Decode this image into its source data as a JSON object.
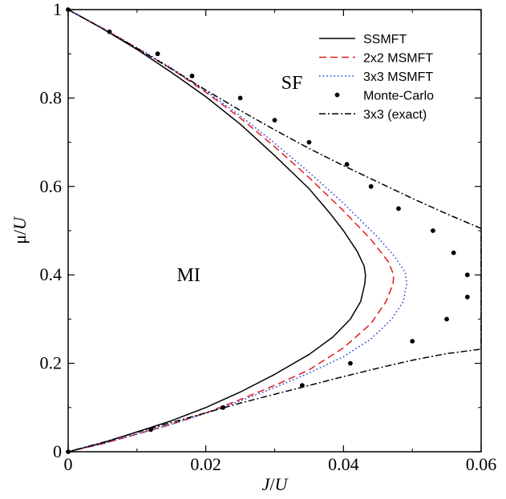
{
  "chart_data": {
    "type": "line",
    "xlabel": {
      "main": "J",
      "sep": "/",
      "sub": "U"
    },
    "ylabel": {
      "main": "μ",
      "sep": "/",
      "sub": "U"
    },
    "xlim": [
      0,
      0.06
    ],
    "ylim": [
      0,
      1
    ],
    "xticks": [
      0,
      0.02,
      0.04,
      0.06
    ],
    "yticks": [
      0,
      0.2,
      0.4,
      0.6,
      0.8,
      1
    ],
    "xtick_labels": [
      "0",
      "0.02",
      "0.04",
      "0.06"
    ],
    "ytick_labels": [
      "0",
      "0.2",
      "0.4",
      "0.6",
      "0.8",
      "1"
    ],
    "legend_position": "top-right",
    "annotations": [
      {
        "text": "SF",
        "x": 0.0325,
        "y": 0.835
      },
      {
        "text": "MI",
        "x": 0.0175,
        "y": 0.4
      }
    ],
    "series": [
      {
        "name": "SSMFT",
        "style": "solid",
        "color": "#000000",
        "points": [
          [
            0,
            1
          ],
          [
            0.005,
            0.957
          ],
          [
            0.01,
            0.91
          ],
          [
            0.015,
            0.858
          ],
          [
            0.02,
            0.803
          ],
          [
            0.025,
            0.741
          ],
          [
            0.03,
            0.67
          ],
          [
            0.035,
            0.595
          ],
          [
            0.038,
            0.54
          ],
          [
            0.04,
            0.5
          ],
          [
            0.042,
            0.453
          ],
          [
            0.043,
            0.42
          ],
          [
            0.0432,
            0.4
          ],
          [
            0.0431,
            0.38
          ],
          [
            0.0425,
            0.34
          ],
          [
            0.041,
            0.3
          ],
          [
            0.0385,
            0.26
          ],
          [
            0.035,
            0.22
          ],
          [
            0.03,
            0.175
          ],
          [
            0.025,
            0.135
          ],
          [
            0.02,
            0.1
          ],
          [
            0.015,
            0.07
          ],
          [
            0.01,
            0.045
          ],
          [
            0.005,
            0.02
          ],
          [
            0,
            0
          ]
        ]
      },
      {
        "name": "2x2 MSMFT",
        "style": "dashed",
        "color": "#e41a1c",
        "points": [
          [
            0,
            1
          ],
          [
            0.005,
            0.958
          ],
          [
            0.01,
            0.913
          ],
          [
            0.015,
            0.866
          ],
          [
            0.02,
            0.813
          ],
          [
            0.025,
            0.755
          ],
          [
            0.03,
            0.69
          ],
          [
            0.035,
            0.62
          ],
          [
            0.04,
            0.545
          ],
          [
            0.044,
            0.48
          ],
          [
            0.0465,
            0.43
          ],
          [
            0.0473,
            0.4
          ],
          [
            0.0472,
            0.38
          ],
          [
            0.0462,
            0.34
          ],
          [
            0.044,
            0.29
          ],
          [
            0.04,
            0.235
          ],
          [
            0.035,
            0.185
          ],
          [
            0.03,
            0.15
          ],
          [
            0.025,
            0.118
          ],
          [
            0.02,
            0.088
          ],
          [
            0.015,
            0.062
          ],
          [
            0.01,
            0.04
          ],
          [
            0.005,
            0.018
          ],
          [
            0,
            0
          ]
        ]
      },
      {
        "name": "3x3 MSMFT",
        "style": "dotted",
        "color": "#1f3fd6",
        "points": [
          [
            0,
            1
          ],
          [
            0.005,
            0.958
          ],
          [
            0.01,
            0.914
          ],
          [
            0.015,
            0.868
          ],
          [
            0.02,
            0.816
          ],
          [
            0.025,
            0.76
          ],
          [
            0.03,
            0.698
          ],
          [
            0.035,
            0.632
          ],
          [
            0.04,
            0.562
          ],
          [
            0.045,
            0.485
          ],
          [
            0.0475,
            0.44
          ],
          [
            0.049,
            0.405
          ],
          [
            0.0492,
            0.38
          ],
          [
            0.0487,
            0.34
          ],
          [
            0.047,
            0.3
          ],
          [
            0.044,
            0.255
          ],
          [
            0.04,
            0.215
          ],
          [
            0.035,
            0.178
          ],
          [
            0.03,
            0.145
          ],
          [
            0.025,
            0.115
          ],
          [
            0.02,
            0.087
          ],
          [
            0.015,
            0.062
          ],
          [
            0.01,
            0.04
          ],
          [
            0.005,
            0.018
          ],
          [
            0,
            0
          ]
        ]
      },
      {
        "name": "Monte-Carlo",
        "style": "markers",
        "color": "#000000",
        "points": [
          [
            0,
            1
          ],
          [
            0.006,
            0.95
          ],
          [
            0.013,
            0.9
          ],
          [
            0.018,
            0.85
          ],
          [
            0.025,
            0.8
          ],
          [
            0.03,
            0.75
          ],
          [
            0.035,
            0.7
          ],
          [
            0.0405,
            0.65
          ],
          [
            0.044,
            0.6
          ],
          [
            0.048,
            0.55
          ],
          [
            0.053,
            0.5
          ],
          [
            0.056,
            0.45
          ],
          [
            0.058,
            0.4
          ],
          [
            0.058,
            0.35
          ],
          [
            0.055,
            0.3
          ],
          [
            0.05,
            0.25
          ],
          [
            0.041,
            0.2
          ],
          [
            0.034,
            0.15
          ],
          [
            0.0225,
            0.1
          ],
          [
            0.012,
            0.05
          ],
          [
            0,
            0
          ]
        ]
      },
      {
        "name": "3x3 (exact)",
        "style": "dashdot",
        "color": "#000000",
        "points": [
          [
            0,
            1
          ],
          [
            0.005,
            0.957
          ],
          [
            0.01,
            0.912
          ],
          [
            0.015,
            0.866
          ],
          [
            0.02,
            0.818
          ],
          [
            0.025,
            0.772
          ],
          [
            0.03,
            0.728
          ],
          [
            0.035,
            0.686
          ],
          [
            0.04,
            0.647
          ],
          [
            0.045,
            0.61
          ],
          [
            0.05,
            0.573
          ],
          [
            0.055,
            0.538
          ],
          [
            0.06,
            0.505
          ],
          [
            0.06,
            0.232
          ],
          [
            0.055,
            0.222
          ],
          [
            0.05,
            0.207
          ],
          [
            0.045,
            0.189
          ],
          [
            0.04,
            0.17
          ],
          [
            0.035,
            0.15
          ],
          [
            0.03,
            0.13
          ],
          [
            0.025,
            0.11
          ],
          [
            0.02,
            0.088
          ],
          [
            0.015,
            0.066
          ],
          [
            0.01,
            0.044
          ],
          [
            0.005,
            0.021
          ],
          [
            0,
            0
          ]
        ]
      }
    ]
  }
}
